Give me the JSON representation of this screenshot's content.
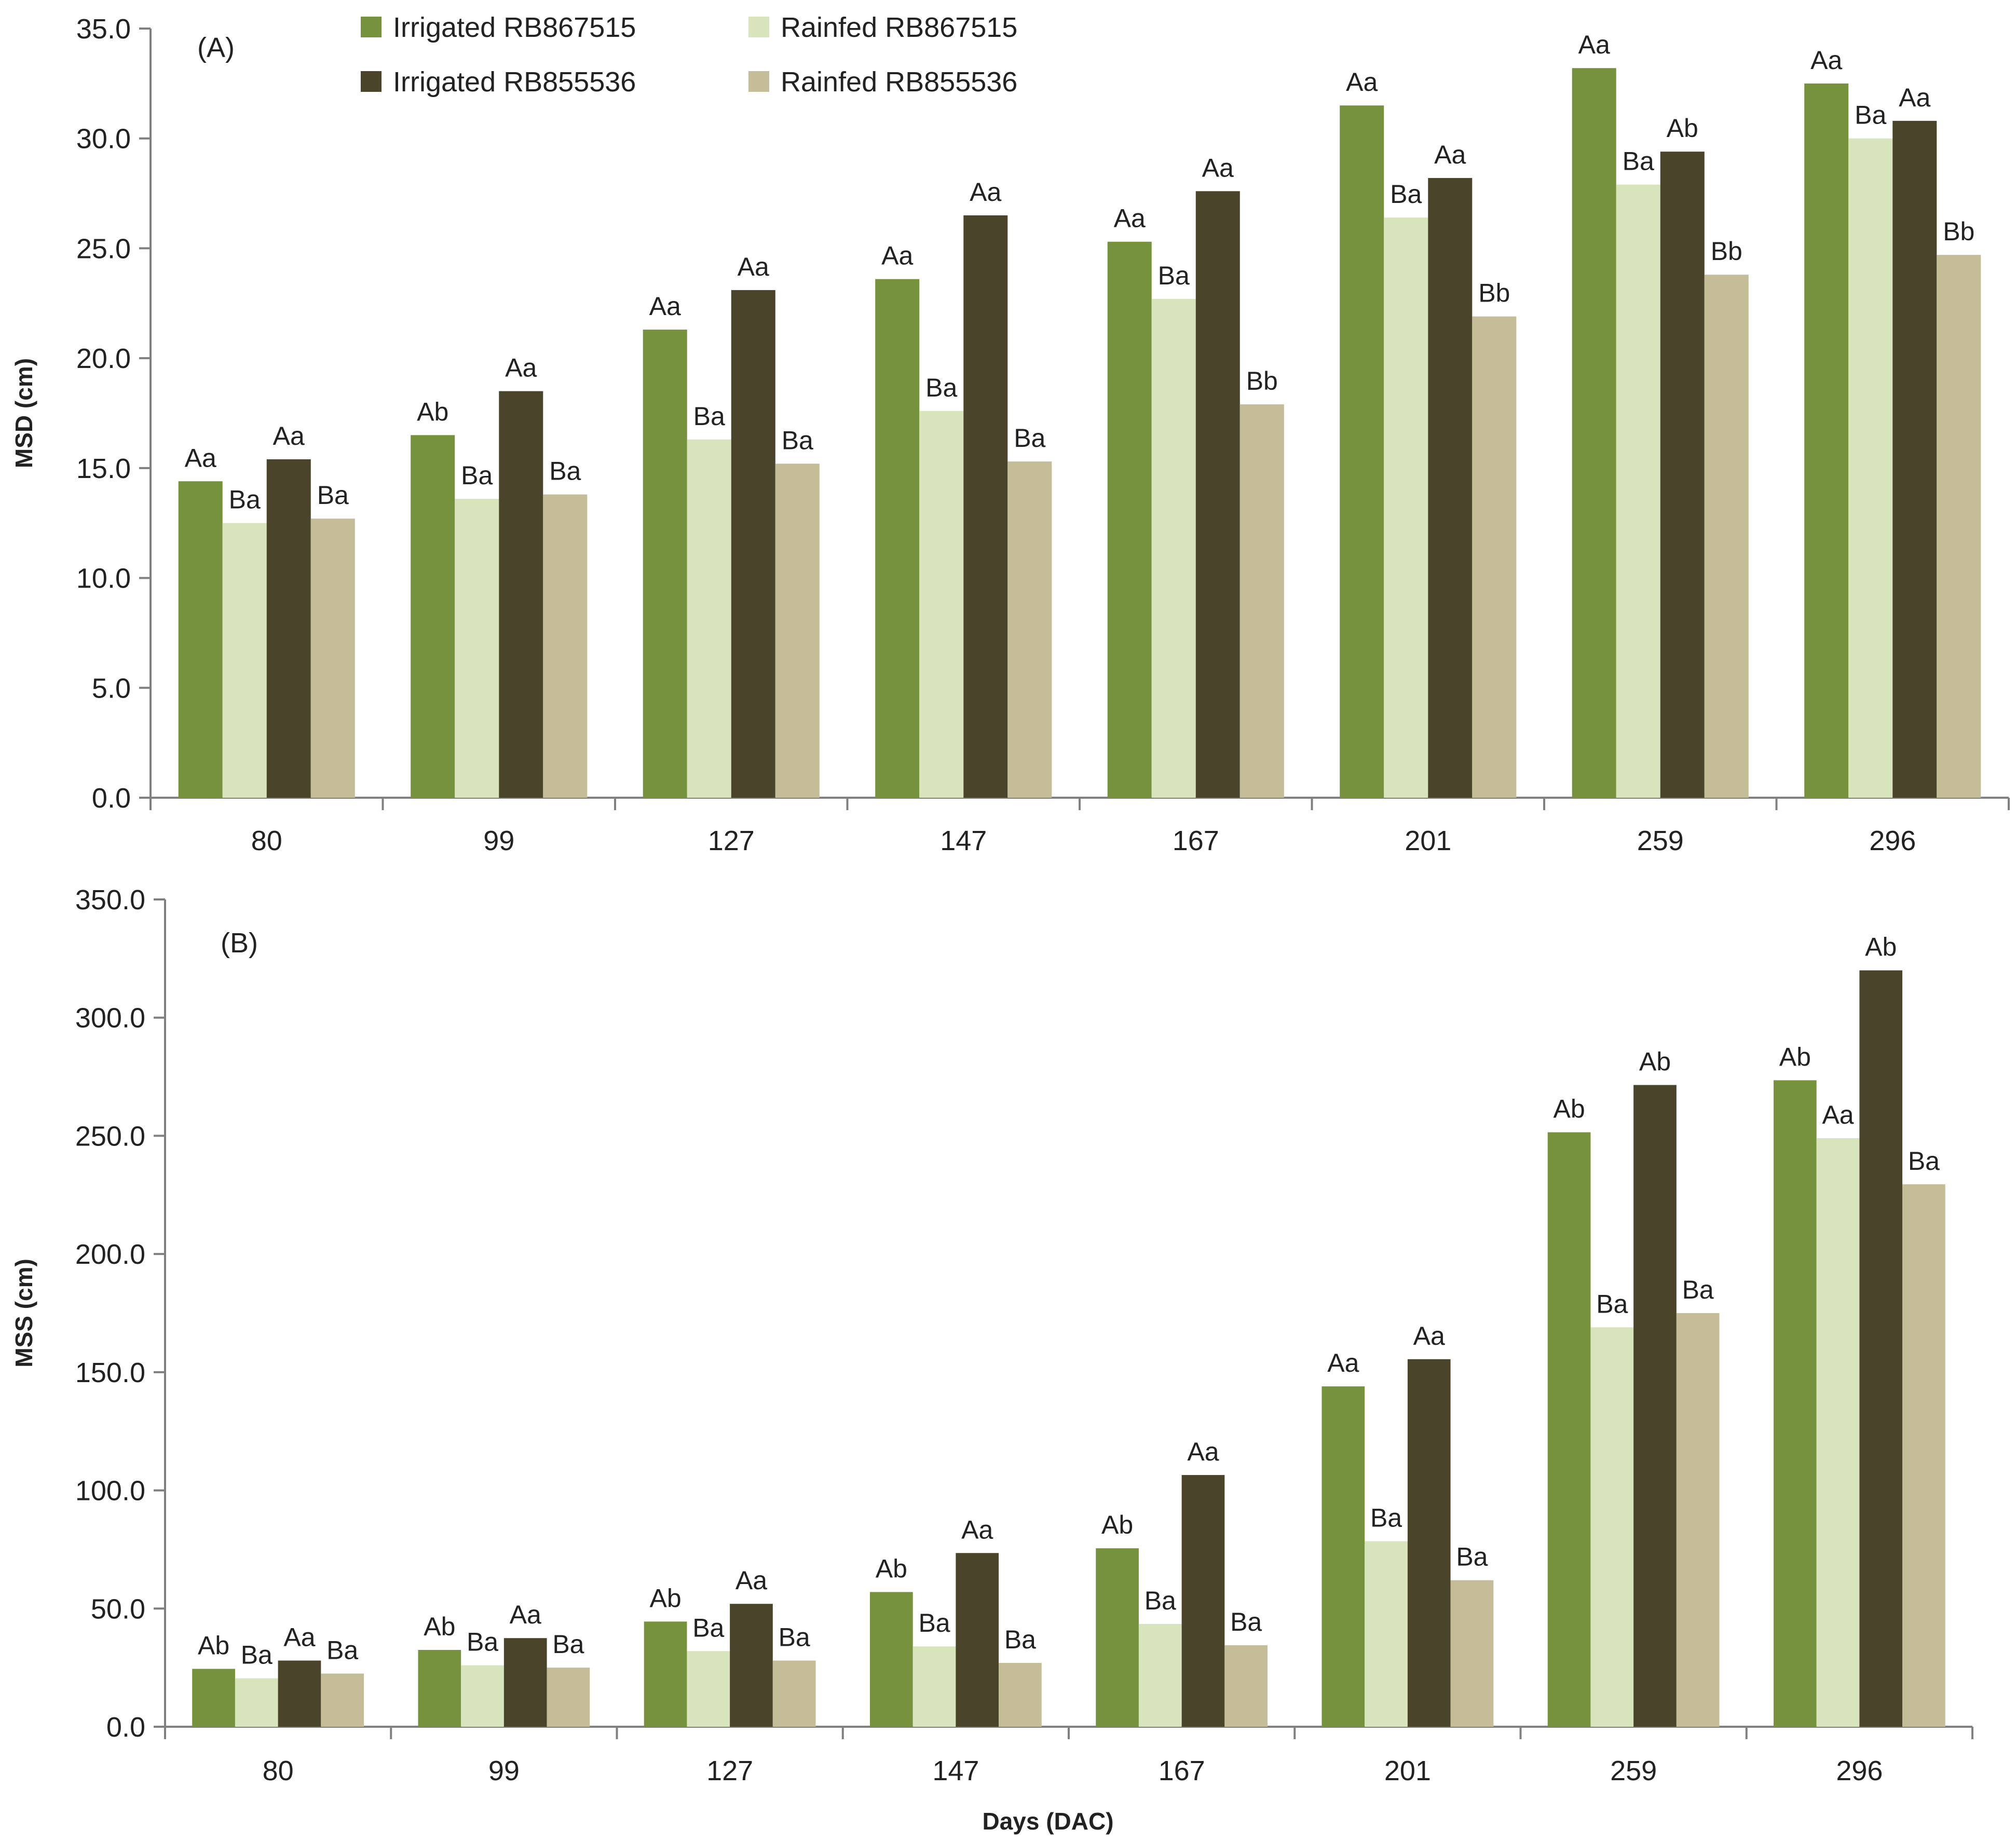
{
  "chart_data": [
    {
      "type": "bar",
      "panel_label": "(A)",
      "ylabel": "MSD (cm)",
      "xlabel": "",
      "ylim": [
        0,
        35
      ],
      "ytick_step": 5,
      "yticks": [
        "0.0",
        "5.0",
        "10.0",
        "15.0",
        "20.0",
        "25.0",
        "30.0",
        "35.0"
      ],
      "categories": [
        "80",
        "99",
        "127",
        "147",
        "167",
        "201",
        "259",
        "296"
      ],
      "legend": {
        "placement": "top-center",
        "columns": 2
      },
      "series": [
        {
          "name": "Irrigated RB867515",
          "color": "#76923c",
          "values": [
            14.4,
            16.5,
            21.3,
            23.6,
            25.3,
            31.5,
            33.2,
            32.5
          ],
          "labels": [
            "Aa",
            "Ab",
            "Aa",
            "Aa",
            "Aa",
            "Aa",
            "Aa",
            "Aa"
          ]
        },
        {
          "name": "Rainfed RB867515",
          "color": "#d8e4bc",
          "values": [
            12.5,
            13.6,
            16.3,
            17.6,
            22.7,
            26.4,
            27.9,
            30.0
          ],
          "labels": [
            "Ba",
            "Ba",
            "Ba",
            "Ba",
            "Ba",
            "Ba",
            "Ba",
            "Ba"
          ]
        },
        {
          "name": "Irrigated RB855536",
          "color": "#4a452a",
          "values": [
            15.4,
            18.5,
            23.1,
            26.5,
            27.6,
            28.2,
            29.4,
            30.8
          ],
          "labels": [
            "Aa",
            "Aa",
            "Aa",
            "Aa",
            "Aa",
            "Aa",
            "Ab",
            "Aa"
          ]
        },
        {
          "name": "Rainfed RB855536",
          "color": "#c4bd97",
          "values": [
            12.7,
            13.8,
            15.2,
            15.3,
            17.9,
            21.9,
            23.8,
            24.7
          ],
          "labels": [
            "Ba",
            "Ba",
            "Ba",
            "Ba",
            "Bb",
            "Bb",
            "Bb",
            "Bb"
          ]
        }
      ]
    },
    {
      "type": "bar",
      "panel_label": "(B)",
      "ylabel": "MSS (cm)",
      "xlabel": "Days (DAC)",
      "ylim": [
        0,
        350
      ],
      "ytick_step": 50,
      "yticks": [
        "0.0",
        "50.0",
        "100.0",
        "150.0",
        "200.0",
        "250.0",
        "300.0",
        "350.0"
      ],
      "categories": [
        "80",
        "99",
        "127",
        "147",
        "167",
        "201",
        "259",
        "296"
      ],
      "series": [
        {
          "name": "Irrigated RB867515",
          "color": "#76923c",
          "values": [
            24.5,
            32.5,
            44.5,
            57.0,
            75.5,
            144.0,
            251.5,
            273.5
          ],
          "labels": [
            "Ab",
            "Ab",
            "Ab",
            "Ab",
            "Ab",
            "Aa",
            "Ab",
            "Ab"
          ]
        },
        {
          "name": "Rainfed RB867515",
          "color": "#d8e4bc",
          "values": [
            20.5,
            26.0,
            32.0,
            34.0,
            43.5,
            78.5,
            169.0,
            249.0
          ],
          "labels": [
            "Ba",
            "Ba",
            "Ba",
            "Ba",
            "Ba",
            "Ba",
            "Ba",
            "Aa"
          ]
        },
        {
          "name": "Irrigated RB855536",
          "color": "#4a452a",
          "values": [
            28.0,
            37.5,
            52.0,
            73.5,
            106.5,
            155.5,
            271.5,
            320.0
          ],
          "labels": [
            "Aa",
            "Aa",
            "Aa",
            "Aa",
            "Aa",
            "Aa",
            "Ab",
            "Ab"
          ]
        },
        {
          "name": "Rainfed RB855536",
          "color": "#c4bd97",
          "values": [
            22.5,
            25.0,
            28.0,
            27.0,
            34.5,
            62.0,
            175.0,
            229.5
          ],
          "labels": [
            "Ba",
            "Ba",
            "Ba",
            "Ba",
            "Ba",
            "Ba",
            "Ba",
            "Ba"
          ]
        }
      ]
    }
  ]
}
